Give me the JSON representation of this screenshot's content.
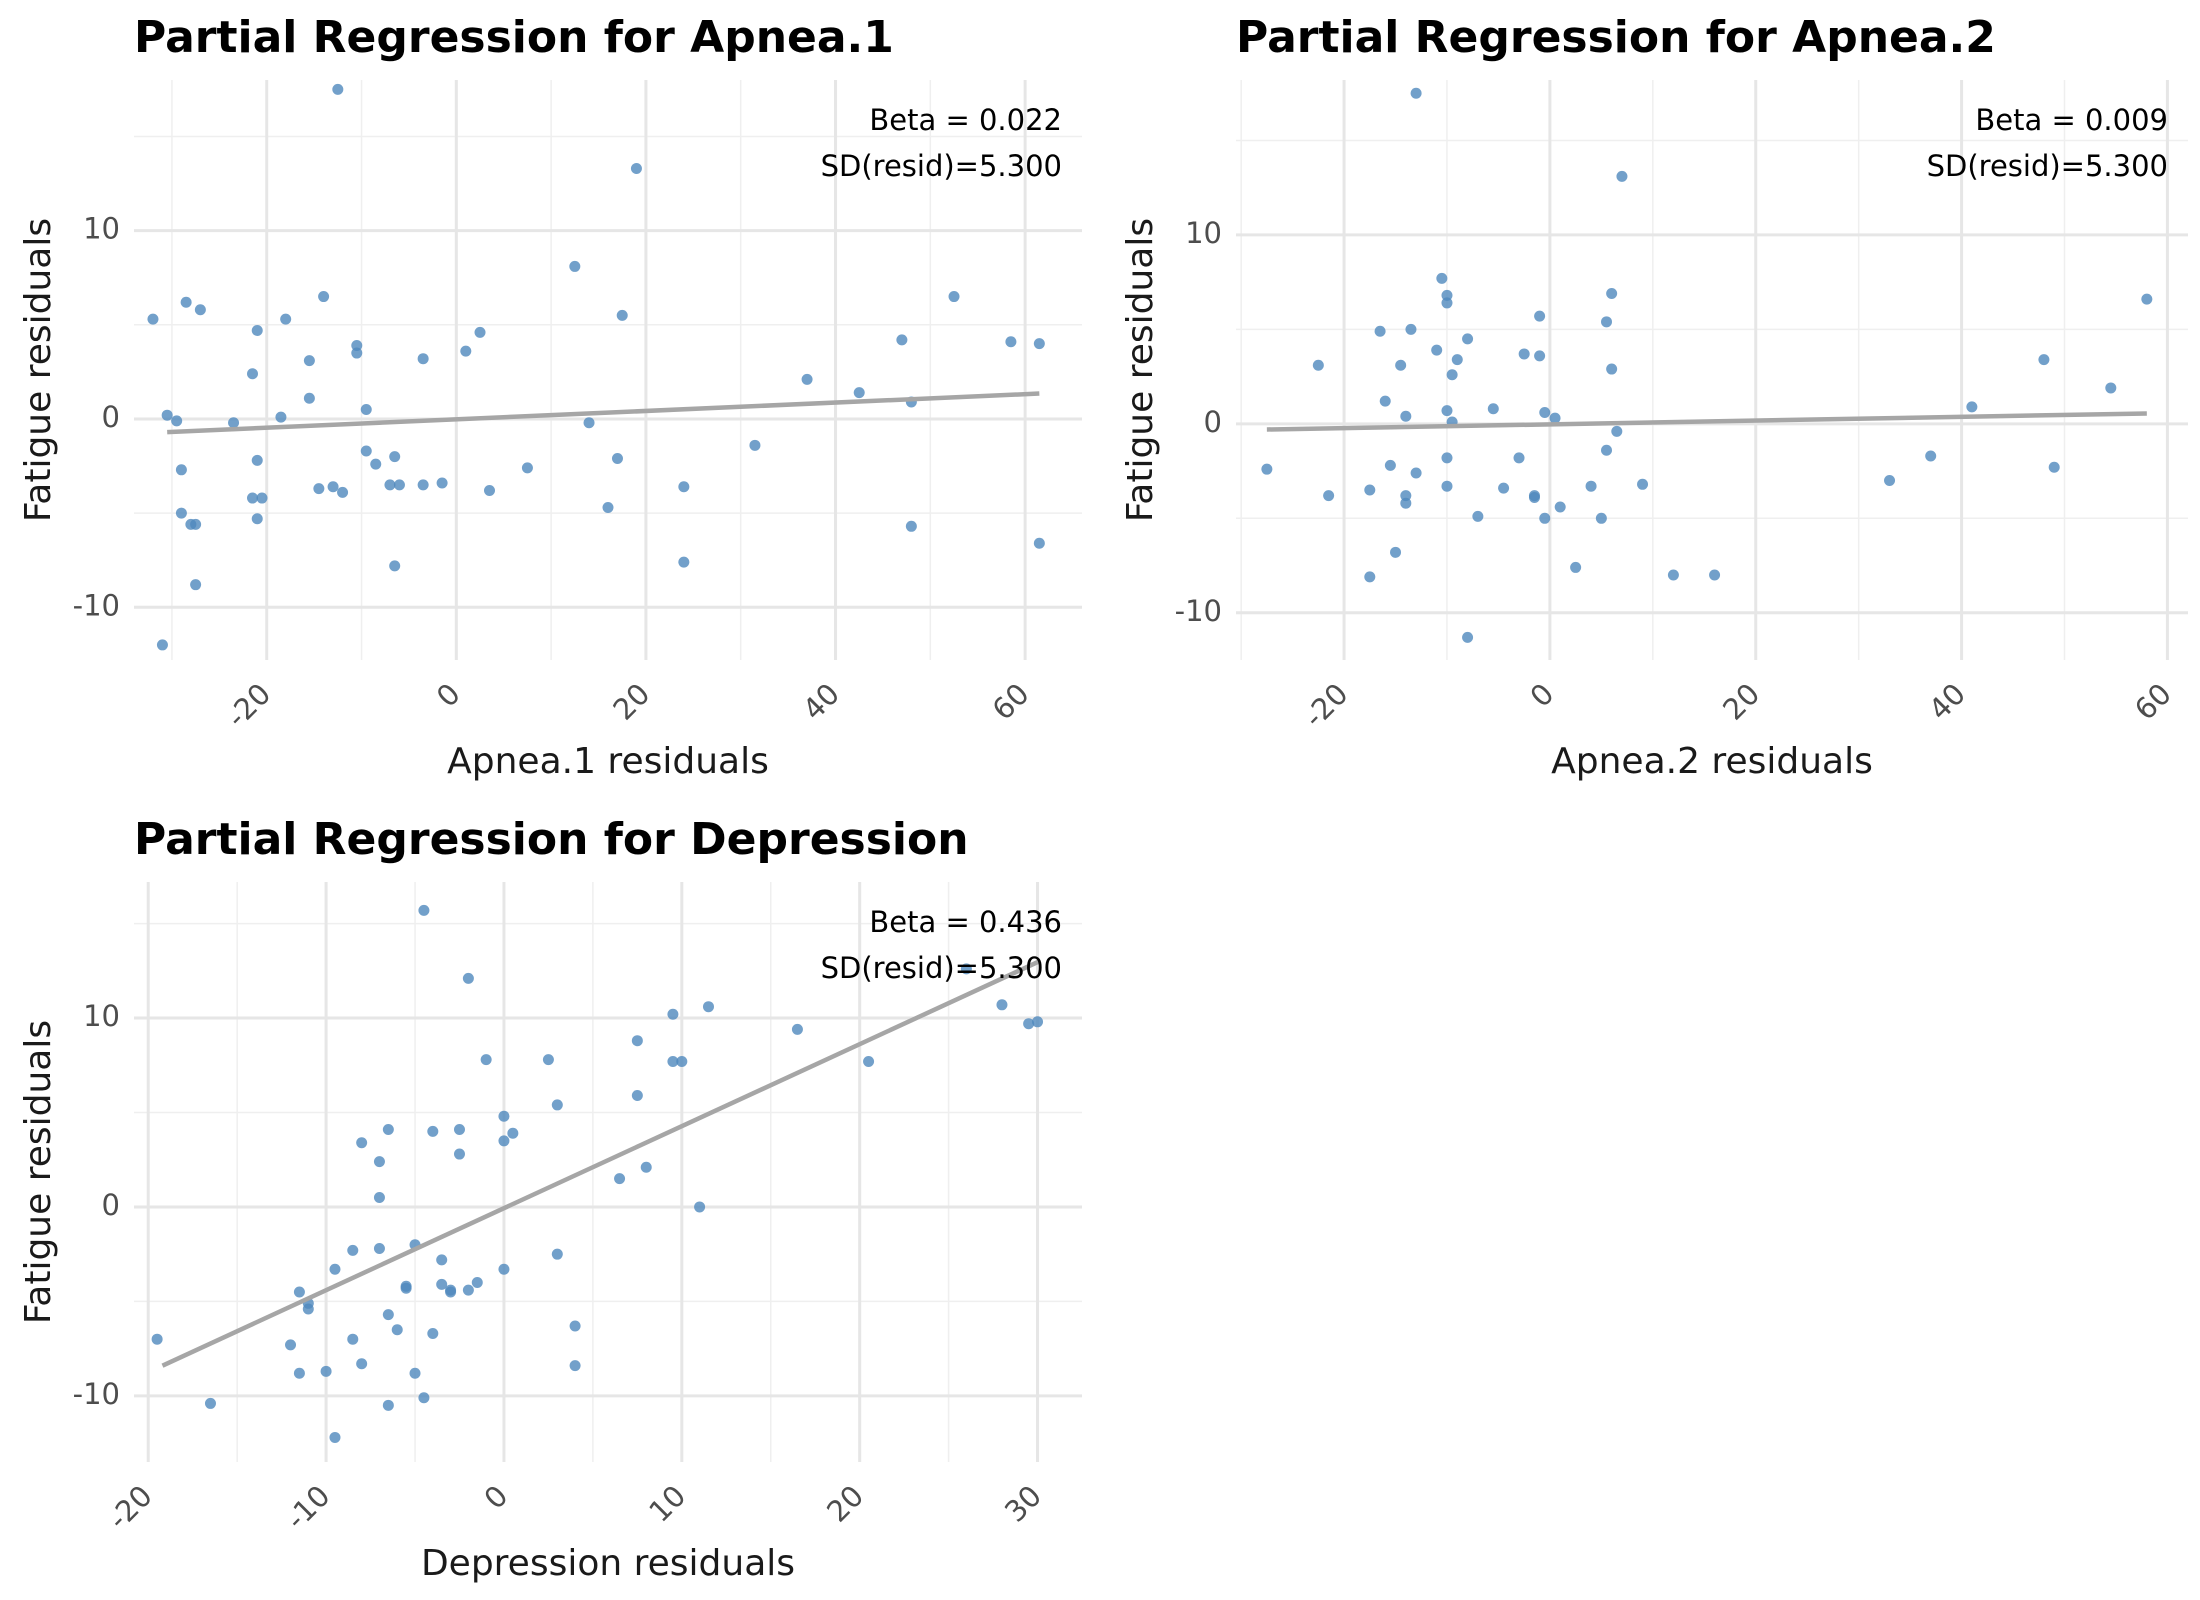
{
  "chart_data": [
    {
      "type": "scatter",
      "title": "Partial Regression for Apnea.1",
      "xlabel": "Apnea.1 residuals",
      "ylabel": "Fatigue residuals",
      "xlim": [
        -34,
        66
      ],
      "ylim": [
        -12.8,
        18
      ],
      "xticks": [
        -20,
        0,
        20,
        40,
        60
      ],
      "yticks": [
        -10,
        0,
        10
      ],
      "grid": true,
      "annotations": [
        "Beta = 0.022",
        "SD(resid)=5.300"
      ],
      "colors": {
        "points": "#4f88bd",
        "line": "#a6a6a6"
      },
      "fit_line": {
        "x": [
          -30.5,
          61.5
        ],
        "y": [
          -0.7,
          1.35
        ]
      },
      "series": [
        {
          "x": [
            -12.5,
            -32,
            -30.5,
            -29.5,
            -28.5,
            -27,
            -21,
            -29,
            -31,
            -29,
            -27.5,
            -28,
            -27.5,
            -23.5,
            -21.5,
            -21,
            -20.5,
            -18.5,
            -18,
            -15.5,
            -15.5,
            -14.5,
            -14,
            -13,
            -12,
            -10.5,
            -10.5,
            -9.5,
            -9.5,
            -8.5,
            -7,
            -6.5,
            -6.5,
            -6,
            -3.5,
            -3.5,
            -1.5,
            1,
            2.5,
            3.5,
            7.5,
            12.5,
            14,
            16,
            17,
            17.5,
            19,
            24,
            24,
            31.5,
            37,
            42.5,
            47,
            48,
            48,
            52.5,
            58.5,
            61.5,
            61.5,
            -21,
            -21.5
          ],
          "y": [
            17.5,
            5.3,
            0.2,
            -0.1,
            6.2,
            5.8,
            4.7,
            -2.7,
            -12,
            -5,
            -8.8,
            -5.6,
            -5.6,
            -0.2,
            2.4,
            -2.2,
            -4.2,
            0.1,
            5.3,
            1.1,
            3.1,
            -3.7,
            6.5,
            -3.6,
            -3.9,
            3.9,
            3.5,
            0.5,
            -1.7,
            -2.4,
            -3.5,
            -2,
            -7.8,
            -3.5,
            3.2,
            -3.5,
            -3.4,
            3.6,
            4.6,
            -3.8,
            -2.6,
            8.1,
            -0.2,
            -4.7,
            -2.1,
            5.5,
            13.3,
            -3.6,
            -7.6,
            -1.4,
            2.1,
            1.4,
            4.2,
            0.9,
            -5.7,
            6.5,
            4.1,
            4,
            -6.6,
            -5.3,
            -4.2
          ]
        }
      ]
    },
    {
      "type": "scatter",
      "title": "Partial Regression for Apnea.2",
      "xlabel": "Apnea.2 residuals",
      "ylabel": "Fatigue residuals",
      "xlim": [
        -30.5,
        62
      ],
      "ylim": [
        -12.5,
        18.2
      ],
      "xticks": [
        -20,
        0,
        20,
        40,
        60
      ],
      "yticks": [
        -10,
        0,
        10
      ],
      "grid": true,
      "annotations": [
        "Beta = 0.009",
        "SD(resid)=5.300"
      ],
      "colors": {
        "points": "#4f88bd",
        "line": "#a6a6a6"
      },
      "fit_line": {
        "x": [
          -27.5,
          58
        ],
        "y": [
          -0.3,
          0.55
        ]
      },
      "series": [
        {
          "x": [
            -13,
            -27.5,
            -22.5,
            -21.5,
            -17.5,
            -17.5,
            -16.5,
            -16,
            -15.5,
            -15,
            -14.5,
            -14,
            -14,
            -14,
            -13.5,
            -13,
            -11,
            -10.5,
            -10,
            -10,
            -10,
            -10,
            -10,
            -9.5,
            -9.5,
            -9,
            -8,
            -8,
            -7,
            -5.5,
            -4.5,
            -3,
            -2.5,
            -1.5,
            -1.5,
            -1,
            -1,
            -0.5,
            -0.5,
            0.5,
            1,
            2.5,
            4,
            5,
            5.5,
            5.5,
            6,
            6,
            6.5,
            7,
            9,
            12,
            16,
            33,
            37,
            41,
            48,
            49,
            54.5,
            58
          ],
          "y": [
            17.5,
            -2.4,
            3.1,
            -3.8,
            -8.1,
            -3.5,
            4.9,
            1.2,
            -2.2,
            -6.8,
            3.1,
            0.4,
            -4.2,
            -3.8,
            5,
            -2.6,
            3.9,
            7.7,
            0.7,
            6.8,
            6.4,
            -1.8,
            -3.3,
            2.6,
            0.1,
            3.4,
            4.5,
            -11.3,
            -4.9,
            0.8,
            -3.4,
            -1.8,
            3.7,
            -3.9,
            -3.8,
            5.7,
            3.6,
            0.6,
            -5,
            0.3,
            -4.4,
            -7.6,
            -3.3,
            -5,
            -1.4,
            5.4,
            6.9,
            2.9,
            -0.4,
            13.1,
            -3.2,
            -8,
            -8,
            -3,
            -1.7,
            0.9,
            3.4,
            -2.3,
            1.9,
            6.6
          ]
        }
      ]
    },
    {
      "type": "scatter",
      "title": "Partial Regression for Depression",
      "xlabel": "Depression residuals",
      "ylabel": "Fatigue residuals",
      "xlim": [
        -20.8,
        32.5
      ],
      "ylim": [
        -13.5,
        17.2
      ],
      "xticks": [
        -20,
        -10,
        0,
        10,
        20,
        30
      ],
      "yticks": [
        -10,
        0,
        10
      ],
      "grid": true,
      "annotations": [
        "Beta = 0.436",
        "SD(resid)=5.300"
      ],
      "colors": {
        "points": "#4f88bd",
        "line": "#a6a6a6"
      },
      "fit_line": {
        "x": [
          -19.2,
          30.1
        ],
        "y": [
          -8.4,
          13
        ]
      },
      "series": [
        {
          "x": [
            -4.5,
            -19.5,
            -16.5,
            -12,
            -11.5,
            -11.5,
            -11,
            -11,
            -10,
            -9.5,
            -9.5,
            -8.5,
            -8.5,
            -8,
            -8,
            -7,
            -7,
            -7,
            -6.5,
            -6.5,
            -6.5,
            -6,
            -5.5,
            -5.5,
            -5,
            -5,
            -4.5,
            -4,
            -4,
            -3.5,
            -3.5,
            -3,
            -3,
            -2.5,
            -2.5,
            -2,
            -2,
            -1.5,
            -1,
            0,
            0,
            0,
            0.5,
            2.5,
            3,
            3,
            4,
            4,
            6.5,
            7.5,
            7.5,
            8,
            9.5,
            9.5,
            10,
            11,
            11.5,
            16.5,
            20.5,
            26,
            28,
            29.5,
            30
          ],
          "y": [
            15.7,
            -7,
            -10.4,
            -7.3,
            -4.5,
            -8.8,
            -5.4,
            -5.1,
            -8.7,
            -3.3,
            -12.2,
            -2.3,
            -7,
            3.4,
            -8.3,
            0.5,
            2.4,
            -2.2,
            -5.7,
            -10.5,
            4.1,
            -6.5,
            -4.2,
            -4.3,
            -8.8,
            -2,
            -10.1,
            4,
            -6.7,
            -4.1,
            -2.8,
            -4.5,
            -4.4,
            4.1,
            2.8,
            12.1,
            -4.4,
            -4,
            7.8,
            3.5,
            -3.3,
            4.8,
            3.9,
            7.8,
            5.4,
            -2.5,
            -6.3,
            -8.4,
            1.5,
            5.9,
            8.8,
            2.1,
            10.2,
            7.7,
            7.7,
            0,
            10.6,
            9.4,
            7.7,
            12.6,
            10.7,
            9.7,
            9.8
          ]
        }
      ]
    }
  ]
}
